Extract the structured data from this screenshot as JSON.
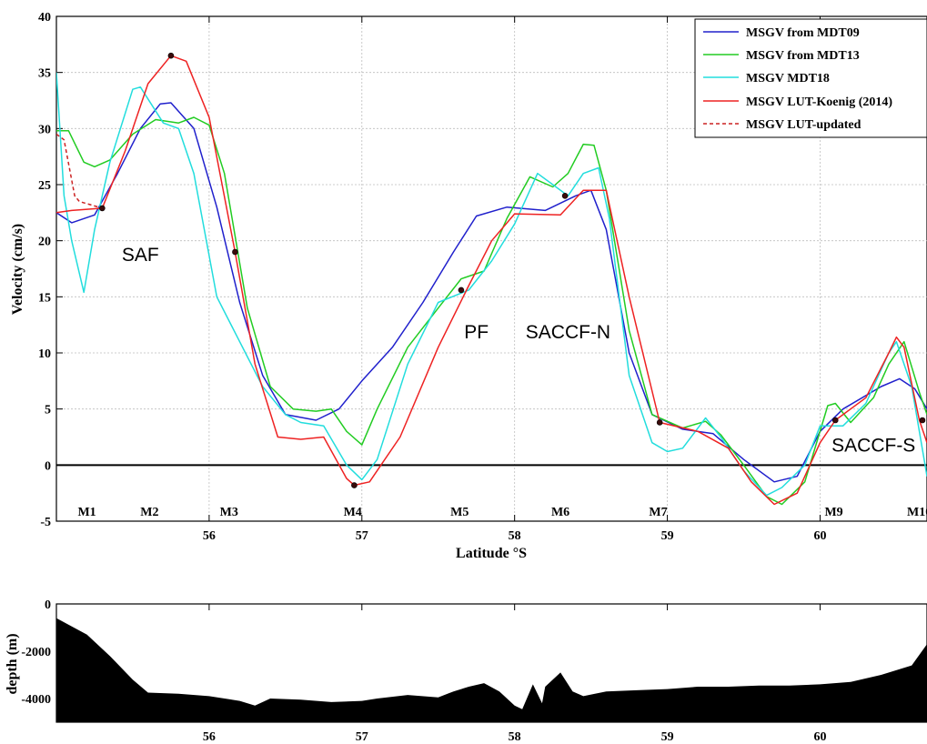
{
  "chart_data": [
    {
      "type": "line",
      "xlabel": "Latitude °S",
      "ylabel": "Velocity (cm/s)",
      "xlim": [
        55.0,
        60.7
      ],
      "ylim": [
        -5,
        40
      ],
      "xticks": [
        56,
        57,
        58,
        59,
        60
      ],
      "yticks": [
        -5,
        0,
        5,
        10,
        15,
        20,
        25,
        30,
        35,
        40
      ],
      "grid": true,
      "legend_position": "top-right",
      "zero_line": true,
      "series": [
        {
          "name": "MSGV from MDT09",
          "color": "#2020cc",
          "dash": "solid",
          "points": [
            [
              55.0,
              22.5
            ],
            [
              55.1,
              21.6
            ],
            [
              55.25,
              22.3
            ],
            [
              55.4,
              26
            ],
            [
              55.55,
              30
            ],
            [
              55.68,
              32.2
            ],
            [
              55.75,
              32.3
            ],
            [
              55.9,
              30
            ],
            [
              56.05,
              23
            ],
            [
              56.2,
              14.5
            ],
            [
              56.35,
              8
            ],
            [
              56.5,
              4.5
            ],
            [
              56.7,
              4
            ],
            [
              56.85,
              5
            ],
            [
              57.0,
              7.5
            ],
            [
              57.2,
              10.5
            ],
            [
              57.4,
              14.5
            ],
            [
              57.6,
              19
            ],
            [
              57.75,
              22.2
            ],
            [
              57.95,
              23
            ],
            [
              58.2,
              22.7
            ],
            [
              58.4,
              24
            ],
            [
              58.5,
              24.5
            ],
            [
              58.6,
              21
            ],
            [
              58.75,
              10
            ],
            [
              58.9,
              4.5
            ],
            [
              59.1,
              3.2
            ],
            [
              59.3,
              2.8
            ],
            [
              59.5,
              0.5
            ],
            [
              59.7,
              -1.5
            ],
            [
              59.85,
              -1
            ],
            [
              60.0,
              3
            ],
            [
              60.15,
              5
            ],
            [
              60.4,
              7
            ],
            [
              60.52,
              7.7
            ],
            [
              60.62,
              6.8
            ],
            [
              60.7,
              5
            ]
          ]
        },
        {
          "name": "MSGV from MDT13",
          "color": "#22cc22",
          "dash": "solid",
          "points": [
            [
              55.0,
              29.8
            ],
            [
              55.08,
              29.8
            ],
            [
              55.18,
              27
            ],
            [
              55.25,
              26.6
            ],
            [
              55.35,
              27.2
            ],
            [
              55.5,
              29.5
            ],
            [
              55.65,
              30.8
            ],
            [
              55.8,
              30.5
            ],
            [
              55.9,
              31
            ],
            [
              56.0,
              30.3
            ],
            [
              56.1,
              26
            ],
            [
              56.25,
              14
            ],
            [
              56.4,
              7
            ],
            [
              56.55,
              5
            ],
            [
              56.7,
              4.8
            ],
            [
              56.8,
              5
            ],
            [
              56.9,
              3
            ],
            [
              57.0,
              1.8
            ],
            [
              57.1,
              5
            ],
            [
              57.3,
              10.5
            ],
            [
              57.5,
              14
            ],
            [
              57.65,
              16.6
            ],
            [
              57.8,
              17.3
            ],
            [
              57.95,
              22
            ],
            [
              58.1,
              25.7
            ],
            [
              58.25,
              24.8
            ],
            [
              58.35,
              26
            ],
            [
              58.45,
              28.6
            ],
            [
              58.52,
              28.5
            ],
            [
              58.6,
              24.5
            ],
            [
              58.75,
              12
            ],
            [
              58.9,
              4.5
            ],
            [
              59.1,
              3.3
            ],
            [
              59.25,
              3.9
            ],
            [
              59.35,
              2.7
            ],
            [
              59.5,
              0
            ],
            [
              59.65,
              -2.8
            ],
            [
              59.75,
              -3.5
            ],
            [
              59.9,
              -1.5
            ],
            [
              60.05,
              5.3
            ],
            [
              60.1,
              5.5
            ],
            [
              60.2,
              3.8
            ],
            [
              60.35,
              6
            ],
            [
              60.45,
              9
            ],
            [
              60.55,
              11
            ],
            [
              60.65,
              6.5
            ],
            [
              60.7,
              4.5
            ]
          ]
        },
        {
          "name": "MSGV MDT18",
          "color": "#22dddd",
          "dash": "solid",
          "points": [
            [
              55.0,
              35
            ],
            [
              55.05,
              24
            ],
            [
              55.1,
              20
            ],
            [
              55.18,
              15.4
            ],
            [
              55.25,
              21
            ],
            [
              55.35,
              27
            ],
            [
              55.5,
              33.5
            ],
            [
              55.55,
              33.7
            ],
            [
              55.7,
              30.5
            ],
            [
              55.8,
              30
            ],
            [
              55.9,
              26
            ],
            [
              56.05,
              15
            ],
            [
              56.2,
              11
            ],
            [
              56.35,
              7
            ],
            [
              56.5,
              4.5
            ],
            [
              56.6,
              3.8
            ],
            [
              56.75,
              3.5
            ],
            [
              56.9,
              0
            ],
            [
              57.0,
              -1.3
            ],
            [
              57.1,
              0.5
            ],
            [
              57.3,
              9
            ],
            [
              57.5,
              14.5
            ],
            [
              57.7,
              15.6
            ],
            [
              57.85,
              18.2
            ],
            [
              58.0,
              21.5
            ],
            [
              58.15,
              26
            ],
            [
              58.25,
              25
            ],
            [
              58.35,
              24
            ],
            [
              58.45,
              26
            ],
            [
              58.55,
              26.5
            ],
            [
              58.62,
              22
            ],
            [
              58.75,
              8
            ],
            [
              58.9,
              2
            ],
            [
              59.0,
              1.2
            ],
            [
              59.1,
              1.5
            ],
            [
              59.25,
              4.2
            ],
            [
              59.35,
              2.5
            ],
            [
              59.5,
              -0.5
            ],
            [
              59.65,
              -2.7
            ],
            [
              59.75,
              -2
            ],
            [
              59.9,
              0
            ],
            [
              60.0,
              3.5
            ],
            [
              60.15,
              3.5
            ],
            [
              60.3,
              5.5
            ],
            [
              60.45,
              10
            ],
            [
              60.5,
              11
            ],
            [
              60.6,
              7
            ],
            [
              60.7,
              -1
            ]
          ]
        },
        {
          "name": "MSGV LUT-Koenig (2014)",
          "color": "#ee2222",
          "dash": "solid",
          "points": [
            [
              55.0,
              22.5
            ],
            [
              55.1,
              22.7
            ],
            [
              55.3,
              22.9
            ],
            [
              55.45,
              28
            ],
            [
              55.6,
              34
            ],
            [
              55.75,
              36.5
            ],
            [
              55.85,
              36
            ],
            [
              56.0,
              31
            ],
            [
              56.17,
              19
            ],
            [
              56.3,
              9
            ],
            [
              56.45,
              2.5
            ],
            [
              56.6,
              2.3
            ],
            [
              56.75,
              2.5
            ],
            [
              56.9,
              -1.2
            ],
            [
              56.95,
              -1.8
            ],
            [
              57.05,
              -1.5
            ],
            [
              57.25,
              2.5
            ],
            [
              57.5,
              10.5
            ],
            [
              57.7,
              16
            ],
            [
              57.85,
              20
            ],
            [
              58.0,
              22.4
            ],
            [
              58.3,
              22.3
            ],
            [
              58.45,
              24.5
            ],
            [
              58.6,
              24.5
            ],
            [
              58.75,
              15
            ],
            [
              58.95,
              3.8
            ],
            [
              59.2,
              3
            ],
            [
              59.4,
              1.5
            ],
            [
              59.55,
              -1.5
            ],
            [
              59.7,
              -3.5
            ],
            [
              59.85,
              -2.5
            ],
            [
              60.0,
              2
            ],
            [
              60.1,
              4
            ],
            [
              60.3,
              6
            ],
            [
              60.45,
              10
            ],
            [
              60.5,
              11.4
            ],
            [
              60.55,
              10.5
            ],
            [
              60.65,
              4
            ],
            [
              60.7,
              2
            ]
          ]
        },
        {
          "name": "MSGV LUT-updated",
          "color": "#cc2222",
          "dash": "dashed",
          "points": [
            [
              55.0,
              29.5
            ],
            [
              55.05,
              29
            ],
            [
              55.12,
              24
            ],
            [
              55.15,
              23.5
            ],
            [
              55.3,
              22.9
            ]
          ]
        }
      ],
      "markers": [
        [
          55.3,
          22.9
        ],
        [
          55.75,
          36.5
        ],
        [
          56.17,
          19
        ],
        [
          56.95,
          -1.8
        ],
        [
          57.65,
          15.6
        ],
        [
          58.33,
          24
        ],
        [
          58.95,
          3.8
        ],
        [
          60.1,
          4
        ],
        [
          60.67,
          4
        ]
      ],
      "mooring_labels": [
        {
          "label": "M1",
          "x": 55.2
        },
        {
          "label": "M2",
          "x": 55.61
        },
        {
          "label": "M3",
          "x": 56.13
        },
        {
          "label": "M4",
          "x": 56.94
        },
        {
          "label": "M5",
          "x": 57.64
        },
        {
          "label": "M6",
          "x": 58.3
        },
        {
          "label": "M7",
          "x": 58.94
        },
        {
          "label": "M9",
          "x": 60.09
        },
        {
          "label": "M10",
          "x": 60.65
        }
      ],
      "annotations": [
        {
          "text": "SAF",
          "x": 55.55,
          "y": 18.2
        },
        {
          "text": "PF",
          "x": 57.75,
          "y": 11.3
        },
        {
          "text": "SACCF-N",
          "x": 58.35,
          "y": 11.3
        },
        {
          "text": "SACCF-S",
          "x": 60.35,
          "y": 1.2
        }
      ]
    },
    {
      "type": "area",
      "xlabel": "",
      "ylabel": "depth (m)",
      "xlim": [
        55.0,
        60.7
      ],
      "ylim": [
        -5000,
        0
      ],
      "xticks": [
        56,
        57,
        58,
        59,
        60
      ],
      "yticks": [
        -4000,
        -2000,
        0
      ],
      "grid": false,
      "fill": "#000000",
      "points": [
        [
          55.0,
          -600
        ],
        [
          55.2,
          -1300
        ],
        [
          55.35,
          -2200
        ],
        [
          55.5,
          -3200
        ],
        [
          55.6,
          -3750
        ],
        [
          55.8,
          -3800
        ],
        [
          56.0,
          -3900
        ],
        [
          56.2,
          -4100
        ],
        [
          56.3,
          -4300
        ],
        [
          56.4,
          -4000
        ],
        [
          56.6,
          -4050
        ],
        [
          56.8,
          -4150
        ],
        [
          57.0,
          -4100
        ],
        [
          57.1,
          -4000
        ],
        [
          57.3,
          -3850
        ],
        [
          57.5,
          -3950
        ],
        [
          57.6,
          -3700
        ],
        [
          57.7,
          -3500
        ],
        [
          57.8,
          -3350
        ],
        [
          57.9,
          -3700
        ],
        [
          58.0,
          -4300
        ],
        [
          58.05,
          -4450
        ],
        [
          58.12,
          -3400
        ],
        [
          58.18,
          -4200
        ],
        [
          58.2,
          -3500
        ],
        [
          58.3,
          -2900
        ],
        [
          58.38,
          -3700
        ],
        [
          58.45,
          -3900
        ],
        [
          58.6,
          -3700
        ],
        [
          58.8,
          -3650
        ],
        [
          59.0,
          -3600
        ],
        [
          59.2,
          -3500
        ],
        [
          59.4,
          -3500
        ],
        [
          59.6,
          -3450
        ],
        [
          59.8,
          -3450
        ],
        [
          60.0,
          -3400
        ],
        [
          60.2,
          -3300
        ],
        [
          60.4,
          -3000
        ],
        [
          60.6,
          -2600
        ],
        [
          60.7,
          -1700
        ]
      ]
    }
  ]
}
